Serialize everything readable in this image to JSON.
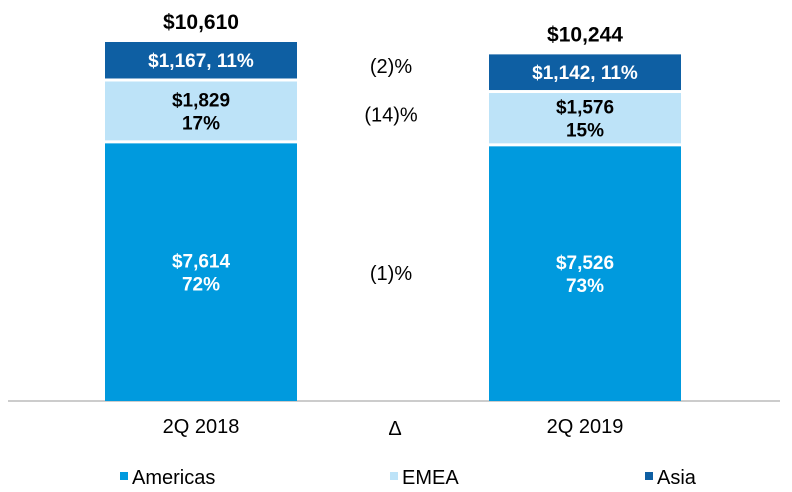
{
  "chart_data": {
    "type": "bar",
    "stacked": true,
    "categories": [
      "2Q 2018",
      "2Q 2019"
    ],
    "delta_label": "Δ",
    "ylim": [
      0,
      10610
    ],
    "grid": false,
    "legend_position": "bottom",
    "series": [
      {
        "name": "Americas",
        "color": "#009ADE",
        "values": [
          7614,
          7526
        ],
        "labels": [
          [
            "$7,614",
            "72%"
          ],
          [
            "$7,526",
            "73%"
          ]
        ],
        "label_color": "white",
        "delta": "(1)%"
      },
      {
        "name": "EMEA",
        "color": "#BDE3F8",
        "values": [
          1829,
          1576
        ],
        "labels": [
          [
            "$1,829",
            "17%"
          ],
          [
            "$1,576",
            "15%"
          ]
        ],
        "label_color": "dark",
        "delta": "(14)%"
      },
      {
        "name": "Asia",
        "color": "#0E5FA3",
        "values": [
          1167,
          1142
        ],
        "labels": [
          [
            "$1,167, 11%"
          ],
          [
            "$1,142, 11%"
          ]
        ],
        "label_color": "white",
        "delta": "(2)%"
      }
    ],
    "totals": [
      "$10,610",
      "$10,244"
    ]
  }
}
